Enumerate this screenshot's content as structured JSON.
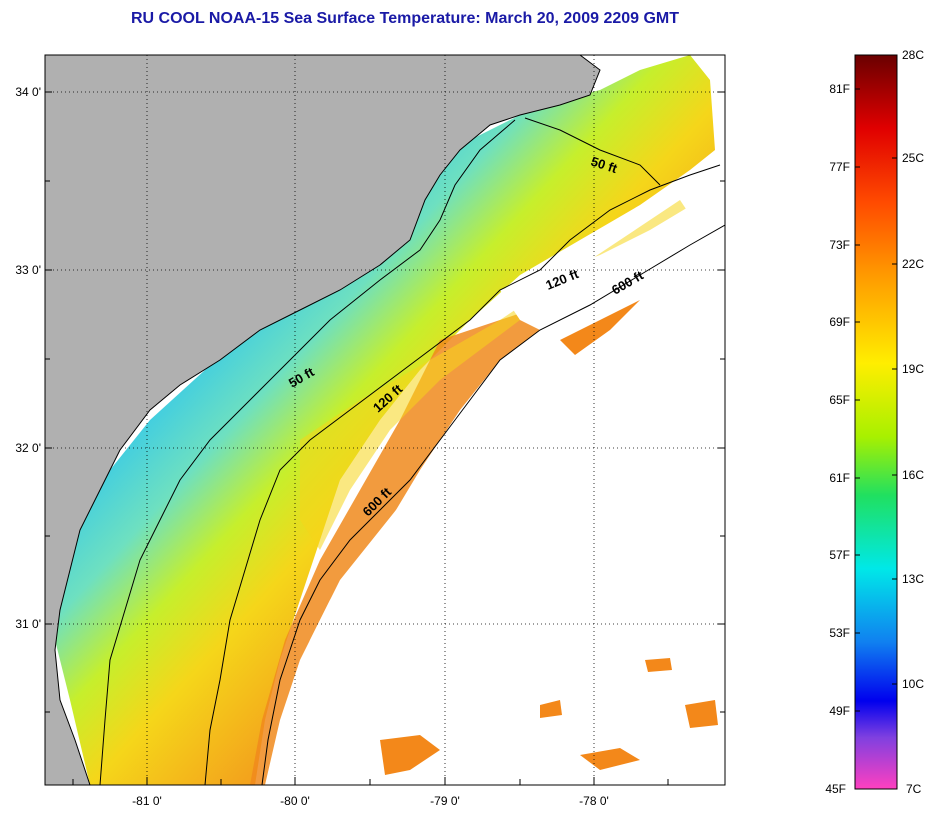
{
  "title": "RU COOL  NOAA-15  Sea Surface Temperature:  March 20, 2009 2209 GMT",
  "map": {
    "lat_labels": [
      "34 0'",
      "33 0'",
      "32 0'",
      "31 0'"
    ],
    "lon_labels": [
      "-81 0'",
      "-80 0'",
      "-79 0'",
      "-78 0'"
    ],
    "isobaths": [
      {
        "label": "50 ft"
      },
      {
        "label": "50 ft"
      },
      {
        "label": "120 ft"
      },
      {
        "label": "120 ft"
      },
      {
        "label": "600 ft"
      },
      {
        "label": "600 ft"
      }
    ],
    "colors": {
      "land": "#b0b0b0",
      "cloud": "#ffffff",
      "cold": "#19b6e8",
      "cool": "#5fd8c8",
      "mid": "#b5ea3a",
      "warm": "#f5d21c",
      "hot": "#f08a1c"
    }
  },
  "colorbar": {
    "f_labels": [
      "81F",
      "77F",
      "73F",
      "69F",
      "65F",
      "61F",
      "57F",
      "53F",
      "49F",
      "45F"
    ],
    "c_labels": [
      "28C",
      "25C",
      "22C",
      "19C",
      "16C",
      "13C",
      "10C",
      "7C"
    ]
  }
}
